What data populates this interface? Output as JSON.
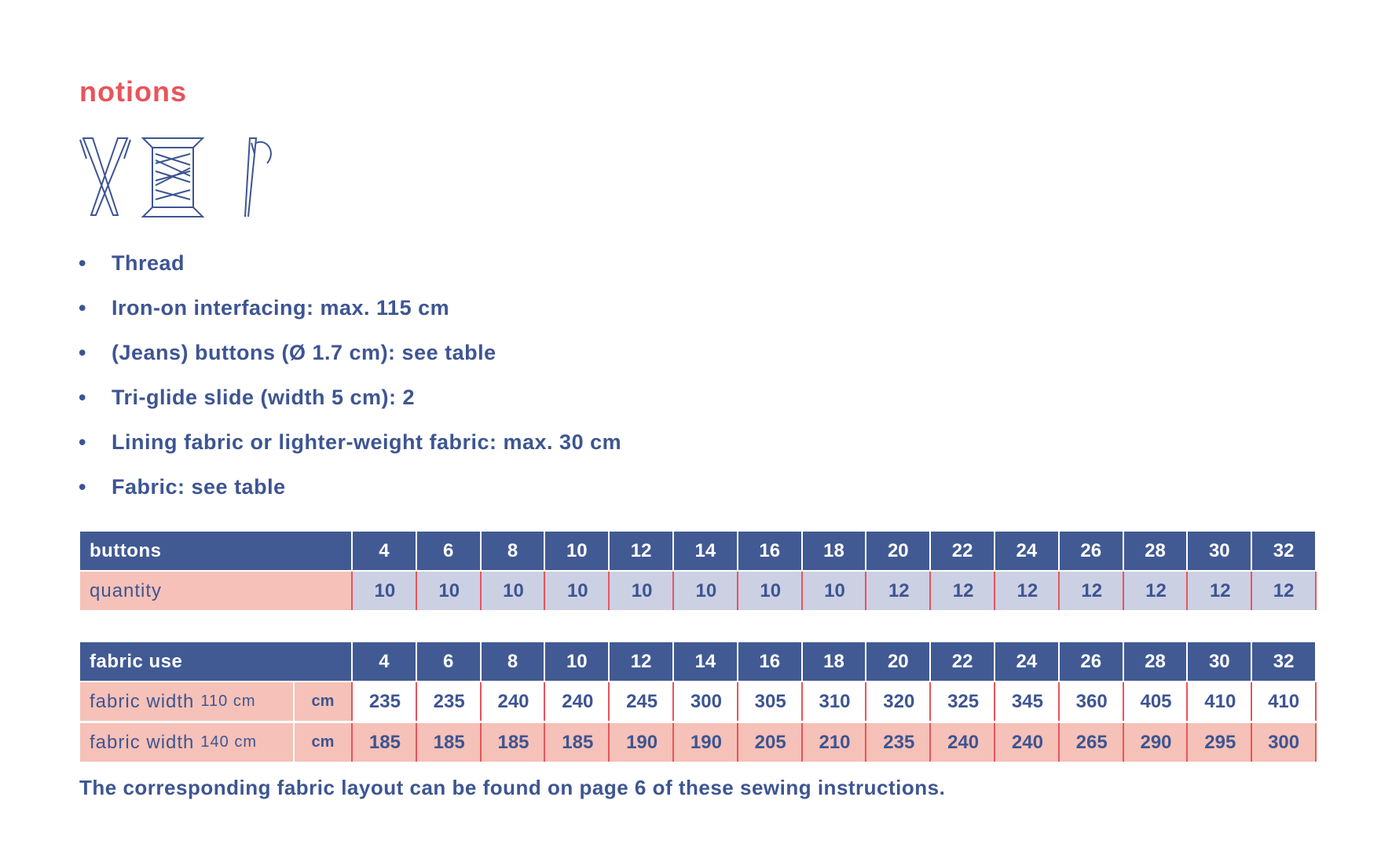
{
  "header": {
    "title": "notions"
  },
  "notions": [
    "Thread",
    "Iron-on interfacing: max. 115 cm",
    "(Jeans) buttons (Ø 1.7 cm): see table",
    "Tri-glide slide (width 5 cm): 2",
    "Lining fabric or lighter-weight fabric: max. 30 cm",
    "Fabric: see table"
  ],
  "buttons_table": {
    "header": "buttons",
    "sizes": [
      4,
      6,
      8,
      10,
      12,
      14,
      16,
      18,
      20,
      22,
      24,
      26,
      28,
      30,
      32
    ],
    "rows": [
      {
        "label": "quantity",
        "values": [
          10,
          10,
          10,
          10,
          10,
          10,
          10,
          10,
          12,
          12,
          12,
          12,
          12,
          12,
          12
        ]
      }
    ]
  },
  "fabric_table": {
    "header": "fabric use",
    "sizes": [
      4,
      6,
      8,
      10,
      12,
      14,
      16,
      18,
      20,
      22,
      24,
      26,
      28,
      30,
      32
    ],
    "rows": [
      {
        "label": "fabric width",
        "width": "110 cm",
        "unit": "cm",
        "values": [
          235,
          235,
          240,
          240,
          245,
          300,
          305,
          310,
          320,
          325,
          345,
          360,
          405,
          410,
          410
        ]
      },
      {
        "label": "fabric width",
        "width": "140 cm",
        "unit": "cm",
        "values": [
          185,
          185,
          185,
          185,
          190,
          190,
          205,
          210,
          235,
          240,
          240,
          265,
          290,
          295,
          300
        ]
      }
    ]
  },
  "footer": "The corresponding fabric layout can be found on page 6 of these sewing instructions."
}
